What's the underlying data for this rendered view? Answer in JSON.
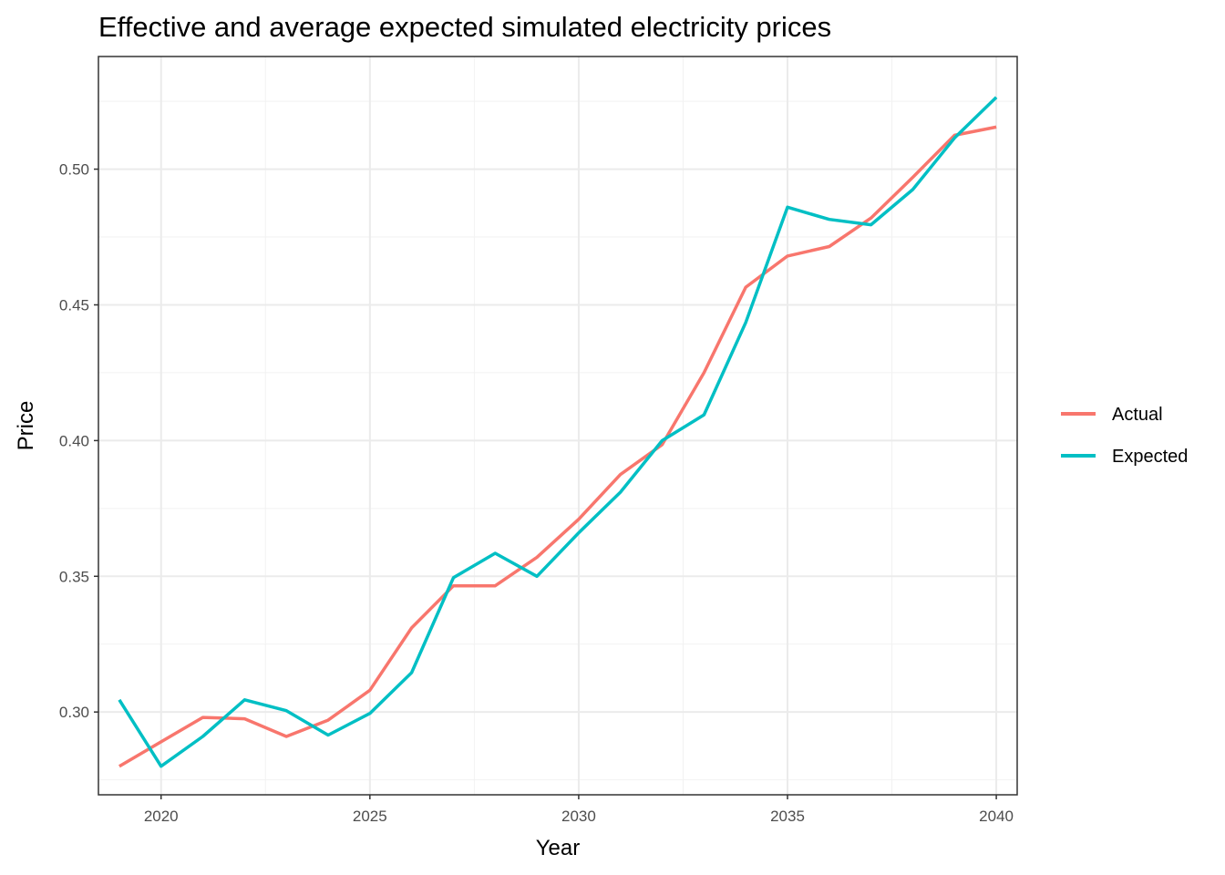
{
  "chart_data": {
    "type": "line",
    "title": "Effective and average expected simulated electricity prices",
    "xlabel": "Year",
    "ylabel": "Price",
    "x": [
      2019,
      2020,
      2021,
      2022,
      2023,
      2024,
      2025,
      2026,
      2027,
      2028,
      2029,
      2030,
      2031,
      2032,
      2033,
      2034,
      2035,
      2036,
      2037,
      2038,
      2039,
      2040
    ],
    "xlim": [
      2018.5,
      2040.5
    ],
    "ylim": [
      0.2695,
      0.5415
    ],
    "x_ticks": [
      2020,
      2025,
      2030,
      2035,
      2040
    ],
    "x_tick_labels": [
      "2020",
      "2025",
      "2030",
      "2035",
      "2040"
    ],
    "y_ticks": [
      0.3,
      0.35,
      0.4,
      0.45,
      0.5
    ],
    "y_tick_labels": [
      "0.30",
      "0.35",
      "0.40",
      "0.45",
      "0.50"
    ],
    "grid": true,
    "legend_position": "right",
    "series": [
      {
        "name": "Actual",
        "color": "#F8766D",
        "values": [
          0.28,
          0.289,
          0.298,
          0.2975,
          0.291,
          0.297,
          0.308,
          0.331,
          0.3465,
          0.3465,
          0.357,
          0.371,
          0.3875,
          0.3985,
          0.425,
          0.4565,
          0.468,
          0.4715,
          0.482,
          0.497,
          0.5125,
          0.5155
        ]
      },
      {
        "name": "Expected",
        "color": "#00BFC4",
        "values": [
          0.3045,
          0.28,
          0.291,
          0.3045,
          0.3005,
          0.2915,
          0.2995,
          0.3145,
          0.3495,
          0.3585,
          0.35,
          0.366,
          0.381,
          0.4,
          0.4095,
          0.4435,
          0.486,
          0.4815,
          0.4795,
          0.4925,
          0.5115,
          0.5265
        ]
      }
    ]
  }
}
